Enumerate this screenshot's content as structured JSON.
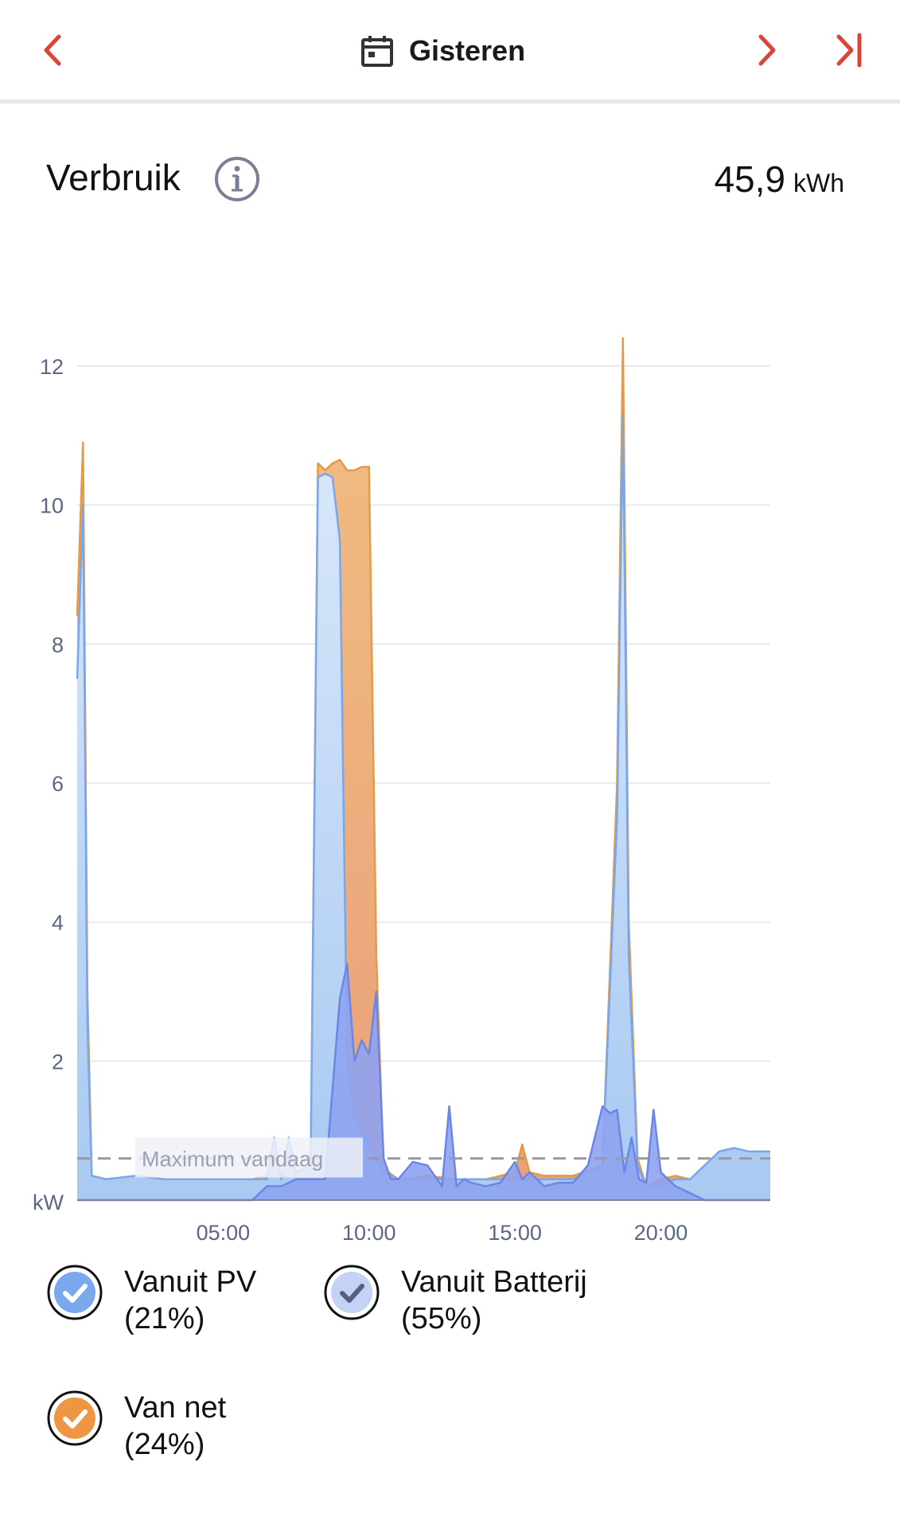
{
  "header": {
    "date_label": "Gisteren",
    "accent_color": "#d9453b"
  },
  "summary": {
    "title": "Verbruik",
    "total_value": "45,9",
    "total_unit": "kWh"
  },
  "chart_data": {
    "type": "area",
    "y_unit_label": "kW",
    "ylim": [
      0,
      12.4
    ],
    "y_ticks": [
      2,
      4,
      6,
      8,
      10,
      12
    ],
    "y_tick_labels": [
      "2",
      "4",
      "6",
      "8",
      "10",
      "12"
    ],
    "x_range_hours": [
      0,
      23.75
    ],
    "x_ticks": [
      5,
      10,
      15,
      20
    ],
    "x_tick_labels": [
      "05:00",
      "10:00",
      "15:00",
      "20:00"
    ],
    "grid": true,
    "reference_line": {
      "label": "Maximum vandaag",
      "value": 0.6
    },
    "colors": {
      "pv": "#a9c9f2",
      "battery": "#8ea3f0",
      "grid": "#eeab68",
      "grid_line": "#e79a45",
      "battery_line": "#6b86e6",
      "pv_line": "#7aa7ea"
    },
    "series": [
      {
        "name": "Van net",
        "key": "grid",
        "x": [
          0,
          0.2,
          0.35,
          0.5,
          1,
          2,
          3,
          4,
          5,
          6,
          6.5,
          7,
          7.5,
          8,
          8.25,
          8.5,
          8.75,
          9,
          9.25,
          9.5,
          9.75,
          10,
          10.25,
          10.5,
          11,
          12,
          13,
          14,
          14.5,
          15,
          15.25,
          15.5,
          16,
          17,
          18,
          18.5,
          18.7,
          18.9,
          19.2,
          19.5,
          20,
          20.5,
          21,
          22,
          23,
          23.75
        ],
        "y": [
          8.4,
          10.9,
          3.0,
          0.35,
          0.3,
          0.35,
          0.3,
          0.3,
          0.3,
          0.3,
          0.35,
          0.4,
          0.35,
          0.5,
          10.6,
          10.5,
          10.6,
          10.65,
          10.5,
          10.5,
          10.55,
          10.55,
          3.5,
          0.45,
          0.3,
          0.35,
          0.3,
          0.3,
          0.35,
          0.4,
          0.8,
          0.4,
          0.35,
          0.35,
          0.5,
          6.0,
          12.4,
          4.0,
          0.6,
          0.2,
          0.3,
          0.35,
          0.3,
          0.5,
          0.3,
          0.3
        ]
      },
      {
        "name": "Vanuit PV",
        "key": "pv",
        "x": [
          0,
          0.2,
          0.35,
          0.5,
          1,
          2,
          3,
          4,
          5,
          6,
          6.5,
          6.75,
          7,
          7.25,
          7.5,
          8,
          8.25,
          8.5,
          8.75,
          9,
          9.25,
          9.5,
          9.75,
          10,
          10.5,
          11,
          12,
          13,
          14,
          15,
          16,
          17,
          18,
          18.5,
          18.7,
          18.9,
          19.2,
          19.5,
          20,
          20.5,
          21,
          21.5,
          22,
          22.5,
          23,
          23.5,
          23.75
        ],
        "y": [
          7.5,
          10.0,
          2.5,
          0.35,
          0.3,
          0.35,
          0.3,
          0.3,
          0.3,
          0.3,
          0.3,
          0.9,
          0.3,
          0.9,
          0.4,
          0.5,
          10.4,
          10.45,
          10.4,
          9.5,
          2.0,
          1.2,
          1.0,
          0.8,
          0.4,
          0.3,
          0.3,
          0.3,
          0.3,
          0.3,
          0.3,
          0.3,
          0.5,
          5.5,
          11.3,
          3.5,
          0.5,
          0.2,
          0.2,
          0.3,
          0.3,
          0.5,
          0.7,
          0.75,
          0.7,
          0.7,
          0.7
        ]
      },
      {
        "name": "Vanuit Batterij",
        "key": "battery",
        "x": [
          0,
          6,
          6.5,
          7,
          7.5,
          8,
          8.5,
          9,
          9.25,
          9.5,
          9.75,
          10,
          10.25,
          10.5,
          10.75,
          11,
          11.5,
          12,
          12.5,
          12.75,
          13,
          13.25,
          13.5,
          14,
          14.5,
          15,
          15.25,
          15.5,
          16,
          16.5,
          17,
          17.5,
          18,
          18.25,
          18.5,
          18.75,
          19,
          19.25,
          19.5,
          19.75,
          20,
          20.25,
          20.5,
          21,
          21.5,
          23.75
        ],
        "y": [
          0,
          0,
          0.2,
          0.2,
          0.3,
          0.3,
          0.3,
          2.9,
          3.4,
          2.0,
          2.3,
          2.1,
          3.0,
          0.6,
          0.3,
          0.3,
          0.55,
          0.5,
          0.2,
          1.35,
          0.2,
          0.3,
          0.25,
          0.2,
          0.25,
          0.55,
          0.3,
          0.4,
          0.2,
          0.25,
          0.25,
          0.5,
          1.35,
          1.25,
          1.3,
          0.4,
          0.9,
          0.3,
          0.25,
          1.3,
          0.4,
          0.3,
          0.2,
          0.1,
          0,
          0
        ]
      }
    ]
  },
  "legend": [
    {
      "name": "Vanuit PV",
      "share": "(21%)",
      "color": "#7aa7ee"
    },
    {
      "name": "Vanuit Batterij",
      "share": "(55%)",
      "color": "#c3d2f5"
    },
    {
      "name": "Van net",
      "share": "(24%)",
      "color": "#ee9643"
    }
  ]
}
